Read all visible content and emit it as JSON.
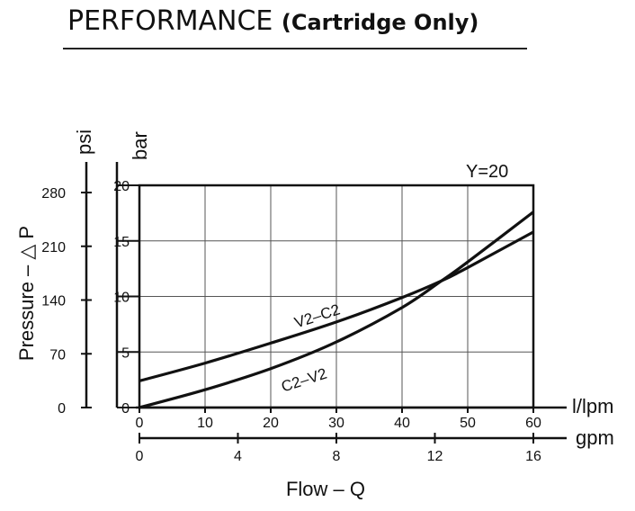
{
  "header": {
    "title_main": "PERFORMANCE",
    "title_sub": "(Cartridge Only)"
  },
  "chart_data": {
    "type": "line",
    "annotation": "Y=20",
    "xlabel": "Flow – Q",
    "ylabel": "Pressure – △ P",
    "x_unit_primary": "l/lpm",
    "x_unit_secondary": "gpm",
    "y_unit_primary": "bar",
    "y_unit_secondary": "psi",
    "xlim": [
      0,
      60
    ],
    "ylim": [
      0,
      20
    ],
    "grid": true,
    "x_ticks": [
      "0",
      "10",
      "20",
      "30",
      "40",
      "50",
      "60"
    ],
    "x_tick_values": [
      0,
      10,
      20,
      30,
      40,
      50,
      60
    ],
    "y_ticks": [
      "0",
      "5",
      "10",
      "15",
      "20"
    ],
    "y_tick_values": [
      0,
      5,
      10,
      15,
      20
    ],
    "gpm_ticks": [
      "0",
      "4",
      "8",
      "12",
      "16"
    ],
    "gpm_tick_values": [
      0,
      4,
      8,
      12,
      16
    ],
    "psi_ticks": [
      "0",
      "70",
      "140",
      "210",
      "280"
    ],
    "psi_tick_values": [
      0,
      70,
      140,
      210,
      280
    ],
    "series": [
      {
        "name": "V2–C2",
        "x": [
          0,
          10,
          20,
          30,
          40,
          46,
          50,
          60
        ],
        "y": [
          2.4,
          4.0,
          5.8,
          7.7,
          9.9,
          11.4,
          12.6,
          15.8
        ]
      },
      {
        "name": "C2–V2",
        "x": [
          0,
          10,
          20,
          30,
          40,
          46,
          50,
          60
        ],
        "y": [
          0,
          1.6,
          3.5,
          5.9,
          9.0,
          11.4,
          13.1,
          17.6
        ]
      }
    ]
  }
}
